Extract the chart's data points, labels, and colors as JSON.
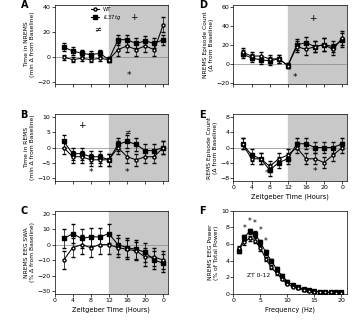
{
  "zeitgeber_all": [
    2,
    4,
    6,
    8,
    10,
    12,
    14,
    16,
    18,
    20,
    22,
    24
  ],
  "A_WT": [
    0,
    -2,
    -1,
    -2,
    -1,
    -2,
    6,
    9,
    6,
    9,
    6,
    26
  ],
  "A_WT_err": [
    2,
    2,
    2,
    2,
    2,
    2,
    5,
    5,
    5,
    5,
    5,
    6
  ],
  "A_IL": [
    8,
    5,
    3,
    2,
    3,
    -2,
    14,
    14,
    11,
    13,
    11,
    14
  ],
  "A_IL_err": [
    3,
    3,
    3,
    3,
    3,
    2,
    4,
    4,
    4,
    4,
    4,
    4
  ],
  "B_WT": [
    0,
    -3,
    -3,
    -4,
    -4,
    -4,
    0,
    -3,
    -4,
    -3,
    -3,
    0
  ],
  "B_WT_err": [
    2,
    2,
    2,
    2,
    2,
    2,
    2,
    2,
    2,
    2,
    2,
    2
  ],
  "B_IL": [
    2,
    -2,
    -2,
    -3,
    -3,
    -4,
    1,
    2,
    1,
    -1,
    -1,
    0
  ],
  "B_IL_err": [
    2,
    2,
    2,
    2,
    2,
    2,
    2,
    2,
    2,
    2,
    2,
    2
  ],
  "C_WT": [
    -10,
    -2,
    0,
    -2,
    0,
    0,
    -2,
    -3,
    -4,
    -8,
    -8,
    -10
  ],
  "C_WT_err": [
    6,
    6,
    6,
    6,
    6,
    6,
    6,
    6,
    6,
    6,
    6,
    6
  ],
  "C_IL": [
    4,
    7,
    4,
    5,
    5,
    7,
    0,
    -2,
    -3,
    -5,
    -10,
    -12
  ],
  "C_IL_err": [
    6,
    6,
    6,
    6,
    6,
    6,
    6,
    6,
    6,
    6,
    6,
    6
  ],
  "D_WT": [
    12,
    8,
    8,
    5,
    5,
    -2,
    18,
    15,
    18,
    20,
    15,
    27
  ],
  "D_WT_err": [
    4,
    4,
    4,
    4,
    4,
    3,
    6,
    6,
    6,
    7,
    6,
    7
  ],
  "D_IL": [
    10,
    6,
    4,
    3,
    5,
    -2,
    20,
    22,
    18,
    20,
    18,
    25
  ],
  "D_IL_err": [
    4,
    4,
    4,
    4,
    4,
    3,
    6,
    6,
    6,
    7,
    6,
    7
  ],
  "E_WT": [
    1,
    -3,
    -3,
    -5,
    -3,
    -2,
    0,
    -3,
    -3,
    -4,
    -2,
    0
  ],
  "E_WT_err": [
    1.5,
    1.5,
    1.5,
    1.5,
    1.5,
    1.5,
    1.5,
    1.5,
    1.5,
    1.5,
    1.5,
    1.5
  ],
  "E_IL": [
    1,
    -2,
    -3,
    -6,
    -4,
    -3,
    1,
    1,
    0,
    0,
    0,
    1
  ],
  "E_IL_err": [
    1.5,
    1.5,
    1.5,
    1.5,
    1.5,
    1.5,
    1.5,
    1.5,
    1.5,
    1.5,
    1.5,
    1.5
  ],
  "F_freq": [
    1,
    2,
    3,
    4,
    5,
    6,
    7,
    8,
    9,
    10,
    11,
    12,
    13,
    14,
    15,
    16,
    17,
    18,
    19,
    20
  ],
  "F_WT": [
    5.5,
    6.2,
    6.7,
    6.4,
    5.5,
    4.2,
    3.2,
    2.5,
    1.8,
    1.2,
    0.9,
    0.7,
    0.5,
    0.4,
    0.3,
    0.28,
    0.2,
    0.2,
    0.18,
    0.18
  ],
  "F_WT_err": [
    0.3,
    0.3,
    0.3,
    0.3,
    0.3,
    0.25,
    0.25,
    0.2,
    0.15,
    0.12,
    0.1,
    0.08,
    0.07,
    0.06,
    0.05,
    0.05,
    0.04,
    0.04,
    0.04,
    0.04
  ],
  "F_IL": [
    5.2,
    6.8,
    7.5,
    7.2,
    6.2,
    5.0,
    4.0,
    3.0,
    2.2,
    1.5,
    1.1,
    0.8,
    0.6,
    0.5,
    0.35,
    0.3,
    0.25,
    0.22,
    0.2,
    0.2
  ],
  "F_IL_err": [
    0.3,
    0.3,
    0.35,
    0.35,
    0.3,
    0.28,
    0.25,
    0.2,
    0.18,
    0.14,
    0.1,
    0.09,
    0.08,
    0.06,
    0.05,
    0.05,
    0.04,
    0.04,
    0.04,
    0.04
  ],
  "shade_color": "#c8c8c8",
  "background": "#ffffff",
  "A_ylabel": "Time in NREMS\n(min Δ from Baseline)",
  "B_ylabel": "Time in REMS\n(min Δ from Baseline)",
  "C_ylabel": "NREMS EEG SWA\n(% Δ from Baseline)",
  "D_ylabel": "NREMS Episode Count\n(Δ from Baseline)",
  "E_ylabel": "REMS Episode Count\n(Δ from Baseline)",
  "F_ylabel": "NREMS EEG Power\n(% of Total Power)",
  "C_xlabel": "Zeitgeber Time (Hours)",
  "E_xlabel": "Zeitgeber Time (Hours)",
  "F_xlabel": "Frequency (Hz)",
  "A_ylim": [
    -22,
    42
  ],
  "B_ylim": [
    -11,
    11
  ],
  "C_ylim": [
    -32,
    22
  ],
  "D_ylim": [
    -22,
    62
  ],
  "E_ylim": [
    -9,
    9
  ],
  "F_ylim": [
    0,
    10
  ],
  "F_label": "ZT 0-12",
  "A_yticks": [
    -20,
    0,
    20,
    40
  ],
  "B_yticks": [
    -10,
    -5,
    0,
    5,
    10
  ],
  "C_yticks": [
    -30,
    -20,
    -10,
    0,
    10,
    20
  ],
  "D_yticks": [
    -20,
    0,
    20,
    40,
    60
  ],
  "E_yticks": [
    -8,
    -4,
    0,
    4,
    8
  ],
  "F_yticks": [
    0,
    2,
    4,
    6,
    8,
    10
  ]
}
